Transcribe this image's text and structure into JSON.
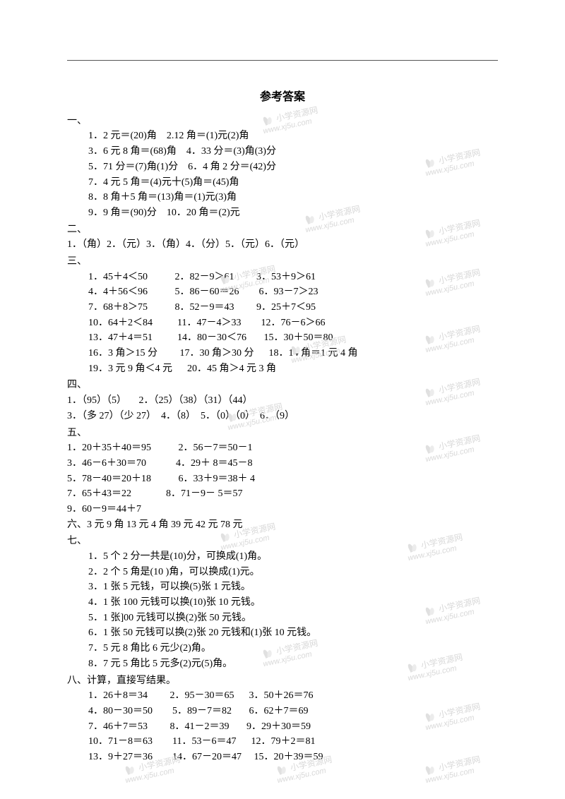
{
  "title": "参考答案",
  "sections": {
    "s1": {
      "head": "一、",
      "lines": [
        "1．2 元＝(20)角    2.12 角＝(1)元(2)角",
        "3．6 元 8 角＝(68)角    4．33 分＝(3)角(3)分",
        "5．71 分＝(7)角(1)分    6．4 角 2 分＝(42)分",
        "7．4 元 5 角＝(4)元十(5)角＝(45)角",
        "8．8 角＋5 角＝(13)角＝(1)元(3)角",
        "9．9 角＝(90)分    10．20 角＝(2)元"
      ]
    },
    "s2": {
      "head": "二、",
      "lines": [
        "1．（角）2．（元）3．（角）4．（分）5．（元）6．（元）"
      ]
    },
    "s3": {
      "head": "三、",
      "table": [
        [
          "1．45＋4＜50",
          "2．82－9＞61",
          "3．53＋9＞61"
        ],
        [
          "4．4＋56＜96",
          "5．86－60＝26",
          "6．93－7＞23"
        ],
        [
          "7．68＋8＞75",
          "8．52－9＝43",
          "9．25＋7＜95"
        ],
        [
          "10．64＋2＜84",
          "11．47－4＞33",
          "12．76－6＞66"
        ],
        [
          "13．47＋4＝51",
          "14．80－30＜76",
          "15．30＋50＝80"
        ],
        [
          "16．3 角＞15 分",
          "17．30 角＞30 分",
          "18．14 角＝1 元 4 角"
        ],
        [
          "19．3 元 9 角＜4 元",
          "20．45 角＞4 元 3 角",
          ""
        ]
      ]
    },
    "s4": {
      "head": "四、",
      "lines": [
        "1．（95）（5）     2．（25）（38）（31）（44）",
        "3．（多 27）（少 27）  4．（8）  5．（0）（0）  6．（9）"
      ]
    },
    "s5": {
      "head": "五、",
      "table": [
        [
          "1．20＋35＋40＝95",
          "2．56－7＝50－1"
        ],
        [
          "3．46－6＋30＝70",
          "4．29＋ 8＝45－8"
        ],
        [
          "5．78－40＝20＋18",
          "6．33＋9＝38＋ 4"
        ],
        [
          "7．65＋43＝22",
          "8．71－9－ 5＝57"
        ],
        [
          "9．60－9＝44＋7",
          ""
        ]
      ]
    },
    "s6": {
      "head": "六、",
      "line": "3 元 9 角  13 元 4 角  39 元  42 元  78 元"
    },
    "s7": {
      "head": "七、",
      "lines": [
        "1．5 个 2 分一共是(10)分，可换成(1)角。",
        "2．2 个 5 角是(10 )角，可以换成(1)元。",
        "3．1 张 5 元钱，可以换(5)张 1 元钱。",
        "4．1 张 100 元钱可以换(10)张 10 元钱。",
        "5．1 张]00 元钱可以换(2)张 50 元钱。",
        "6．1 张 50 元钱可以换(2)张 20 元钱和(1)张 10 元钱。",
        "7．5 元 8 角比 6 元少(2)角。",
        "8．7 元 5 角比 5 元多(2)元(5)角。"
      ]
    },
    "s8": {
      "head": "八、计算，直接写结果。",
      "table": [
        [
          "1．26＋8＝34",
          "2．95－30＝65",
          "3．50＋26＝76"
        ],
        [
          "4．80－30＝50",
          "5．89－7＝82",
          "6．62＋7＝69"
        ],
        [
          "7．46＋7＝53",
          "8．41－2＝39",
          "9．29＋30＝59"
        ],
        [
          "10．71－8＝63",
          "11．53－6＝47",
          "12．79＋2＝81"
        ],
        [
          "13．9＋27＝36",
          "14．67－20＝47",
          "15．20＋39＝59"
        ]
      ]
    }
  },
  "watermark": {
    "cn": "小学资源网",
    "url": "www.xj5u.com"
  },
  "layout": {
    "col3": [
      0,
      20,
      38
    ],
    "col2": [
      0,
      24
    ],
    "col3b": [
      0,
      18,
      34
    ]
  }
}
